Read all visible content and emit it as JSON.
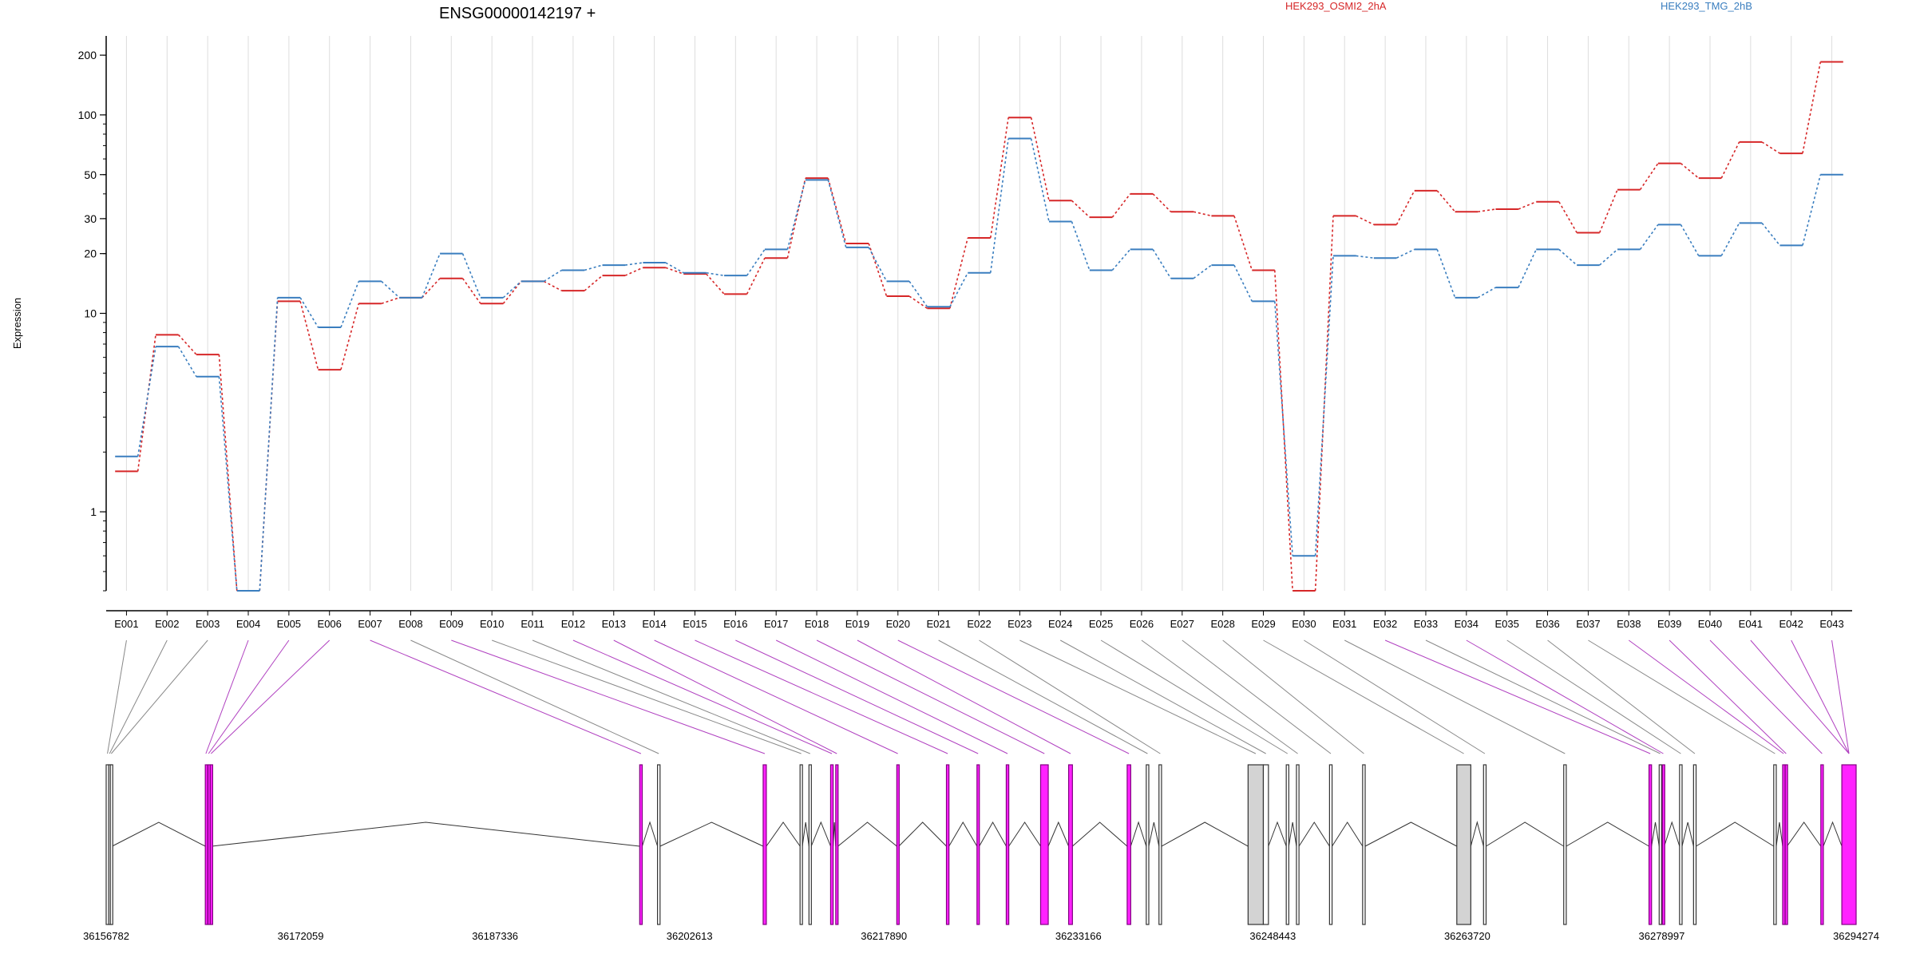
{
  "title": "ENSG00000142197 +",
  "legend": [
    {
      "label": "HEK293_OSMI2_2hA",
      "color": "#d62728"
    },
    {
      "label": "HEK293_TMG_2hB",
      "color": "#3a7ebf"
    }
  ],
  "colors": {
    "exon_highlight": "#ff22ff",
    "exon_highlight_edge": "#800080",
    "exon_plain": "#d3d3d3",
    "connector_gray": "#888888",
    "connector_purple": "#b040c0",
    "grid": "#dddddd"
  },
  "chart_data": {
    "type": "line",
    "ylabel": "Expression",
    "yscale": "log",
    "ylim": [
      0.4,
      250
    ],
    "yticks": [
      1,
      10,
      20,
      30,
      50,
      100,
      200
    ],
    "categories": [
      "E001",
      "E002",
      "E003",
      "E004",
      "E005",
      "E006",
      "E007",
      "E008",
      "E009",
      "E010",
      "E011",
      "E012",
      "E013",
      "E014",
      "E015",
      "E016",
      "E017",
      "E018",
      "E019",
      "E020",
      "E021",
      "E022",
      "E023",
      "E024",
      "E025",
      "E026",
      "E027",
      "E028",
      "E029",
      "E030",
      "E031",
      "E032",
      "E033",
      "E034",
      "E035",
      "E036",
      "E037",
      "E038",
      "E039",
      "E040",
      "E041",
      "E042",
      "E043"
    ],
    "series": [
      {
        "name": "HEK293_OSMI2_2hA",
        "color": "#d62728",
        "values": [
          1.6,
          7.8,
          6.2,
          0.4,
          11.5,
          5.2,
          11.2,
          12.0,
          15.0,
          11.2,
          14.5,
          13.0,
          15.5,
          17.0,
          15.8,
          12.5,
          19.0,
          48.0,
          22.5,
          12.2,
          10.6,
          24.0,
          97.0,
          37.0,
          30.5,
          40.0,
          32.5,
          31.0,
          16.5,
          0.4,
          31.0,
          28.0,
          41.5,
          32.5,
          33.5,
          36.5,
          25.5,
          42.0,
          57.0,
          48.0,
          73.0,
          64.0,
          185.0
        ]
      },
      {
        "name": "HEK293_TMG_2hB",
        "color": "#3a7ebf",
        "values": [
          1.9,
          6.8,
          4.8,
          0.4,
          12.0,
          8.5,
          14.5,
          12.0,
          20.0,
          12.0,
          14.5,
          16.5,
          17.5,
          18.0,
          16.0,
          15.5,
          21.0,
          47.0,
          21.5,
          14.5,
          10.8,
          16.0,
          76.0,
          29.0,
          16.5,
          21.0,
          15.0,
          17.5,
          11.5,
          0.6,
          19.5,
          19.0,
          21.0,
          12.0,
          13.5,
          21.0,
          17.5,
          21.0,
          28.0,
          19.5,
          28.5,
          22.0,
          50.0
        ]
      }
    ]
  },
  "gene_model": {
    "coordinate_labels": [
      "36156782",
      "36172059",
      "36187336",
      "36202613",
      "36217890",
      "36233166",
      "36248443",
      "36263720",
      "36278997",
      "36294274"
    ],
    "exons": [
      {
        "hl": false,
        "s": 36156782,
        "e": 36156980
      },
      {
        "hl": false,
        "s": 36156980,
        "e": 36157110
      },
      {
        "hl": false,
        "s": 36157110,
        "e": 36157250
      },
      {
        "hl": true,
        "s": 36164570,
        "e": 36164660
      },
      {
        "hl": true,
        "s": 36164780,
        "e": 36164870
      },
      {
        "hl": true,
        "s": 36164960,
        "e": 36165080
      },
      {
        "hl": true,
        "s": 36198700,
        "e": 36198900
      },
      {
        "hl": false,
        "s": 36200100,
        "e": 36200300
      },
      {
        "hl": true,
        "s": 36208400,
        "e": 36208650
      },
      {
        "hl": false,
        "s": 36211300,
        "e": 36211480
      },
      {
        "hl": false,
        "s": 36212000,
        "e": 36212180
      },
      {
        "hl": true,
        "s": 36213700,
        "e": 36213900
      },
      {
        "hl": true,
        "s": 36214100,
        "e": 36214280
      },
      {
        "hl": true,
        "s": 36218900,
        "e": 36219060
      },
      {
        "hl": true,
        "s": 36222800,
        "e": 36223000
      },
      {
        "hl": true,
        "s": 36225200,
        "e": 36225380
      },
      {
        "hl": true,
        "s": 36227500,
        "e": 36227700
      },
      {
        "hl": true,
        "s": 36230200,
        "e": 36230800
      },
      {
        "hl": true,
        "s": 36232400,
        "e": 36232700
      },
      {
        "hl": true,
        "s": 36237000,
        "e": 36237280
      },
      {
        "hl": false,
        "s": 36238500,
        "e": 36238700
      },
      {
        "hl": false,
        "s": 36239500,
        "e": 36239700
      },
      {
        "hl": false,
        "s": 36246500,
        "e": 36247700
      },
      {
        "hl": false,
        "s": 36247700,
        "e": 36248100
      },
      {
        "hl": false,
        "s": 36249500,
        "e": 36249700
      },
      {
        "hl": false,
        "s": 36250300,
        "e": 36250500
      },
      {
        "hl": false,
        "s": 36252900,
        "e": 36253100
      },
      {
        "hl": false,
        "s": 36255500,
        "e": 36255700
      },
      {
        "hl": false,
        "s": 36262900,
        "e": 36264000
      },
      {
        "hl": false,
        "s": 36265000,
        "e": 36265200
      },
      {
        "hl": false,
        "s": 36271300,
        "e": 36271500
      },
      {
        "hl": true,
        "s": 36278000,
        "e": 36278200
      },
      {
        "hl": false,
        "s": 36278800,
        "e": 36278960
      },
      {
        "hl": true,
        "s": 36279050,
        "e": 36279200
      },
      {
        "hl": false,
        "s": 36280400,
        "e": 36280600
      },
      {
        "hl": false,
        "s": 36281500,
        "e": 36281700
      },
      {
        "hl": false,
        "s": 36287800,
        "e": 36288000
      },
      {
        "hl": true,
        "s": 36288500,
        "e": 36288650
      },
      {
        "hl": true,
        "s": 36288700,
        "e": 36288850
      },
      {
        "hl": true,
        "s": 36291500,
        "e": 36291700
      },
      {
        "hl": true,
        "s": 36293150,
        "e": 36294274
      }
    ],
    "links": [
      0,
      1,
      2,
      3,
      4,
      5,
      6,
      7,
      8,
      9,
      10,
      11,
      12,
      13,
      14,
      15,
      16,
      17,
      18,
      19,
      20,
      21,
      22,
      23,
      24,
      25,
      26,
      27,
      28,
      29,
      30,
      31,
      32,
      33,
      34,
      35,
      36,
      37,
      38,
      39,
      40,
      40,
      40
    ]
  }
}
